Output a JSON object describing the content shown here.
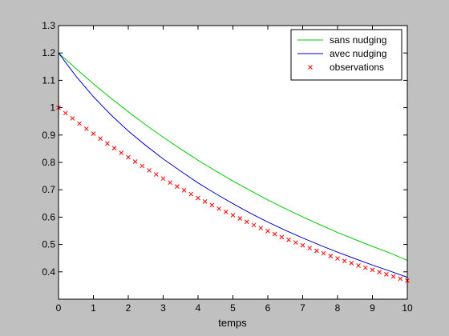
{
  "chart_data": {
    "type": "line",
    "title": "",
    "xlabel": "temps",
    "ylabel": "",
    "xlim": [
      0,
      10
    ],
    "ylim": [
      0.3,
      1.3
    ],
    "xticks": [
      "0",
      "1",
      "2",
      "3",
      "4",
      "5",
      "6",
      "7",
      "8",
      "9",
      "10"
    ],
    "yticks": [
      "0.4",
      "0.5",
      "0.6",
      "0.7",
      "0.8",
      "0.9",
      "1",
      "1.1",
      "1.2",
      "1.3"
    ],
    "grid": false,
    "legend_position": "top-right",
    "colors": {
      "figure_background": "#c0c0c0",
      "axes_background": "#ffffff",
      "sans_nudging": "#00cc00",
      "avec_nudging": "#0000cc",
      "observations": "#ff0000"
    },
    "series": [
      {
        "name": "sans nudging",
        "style": "line",
        "x": [
          0,
          0.5,
          1,
          1.5,
          2,
          2.5,
          3,
          3.5,
          4,
          4.5,
          5,
          5.5,
          6,
          6.5,
          7,
          7.5,
          8,
          8.5,
          9,
          9.5,
          10
        ],
        "y": [
          1.2,
          1.143,
          1.087,
          1.035,
          0.985,
          0.937,
          0.892,
          0.849,
          0.808,
          0.769,
          0.732,
          0.697,
          0.663,
          0.631,
          0.601,
          0.572,
          0.544,
          0.518,
          0.493,
          0.469,
          0.442
        ]
      },
      {
        "name": "avec nudging",
        "style": "line",
        "x": [
          0,
          0.5,
          1,
          1.5,
          2,
          2.5,
          3,
          3.5,
          4,
          4.5,
          5,
          5.5,
          6,
          6.5,
          7,
          7.5,
          8,
          8.5,
          9,
          9.5,
          10
        ],
        "y": [
          1.2,
          1.115,
          1.04,
          0.974,
          0.915,
          0.862,
          0.813,
          0.768,
          0.725,
          0.686,
          0.649,
          0.614,
          0.582,
          0.552,
          0.524,
          0.497,
          0.472,
          0.448,
          0.425,
          0.403,
          0.38
        ]
      },
      {
        "name": "observations",
        "style": "marker-x",
        "x": [
          0,
          0.2,
          0.4,
          0.6,
          0.8,
          1,
          1.2,
          1.4,
          1.6,
          1.8,
          2,
          2.2,
          2.4,
          2.6,
          2.8,
          3,
          3.2,
          3.4,
          3.6,
          3.8,
          4,
          4.2,
          4.4,
          4.6,
          4.8,
          5,
          5.2,
          5.4,
          5.6,
          5.8,
          6,
          6.2,
          6.4,
          6.6,
          6.8,
          7,
          7.2,
          7.4,
          7.6,
          7.8,
          8,
          8.2,
          8.4,
          8.6,
          8.8,
          9,
          9.2,
          9.4,
          9.6,
          9.8,
          10
        ],
        "y": [
          1,
          0.98,
          0.961,
          0.942,
          0.923,
          0.905,
          0.887,
          0.869,
          0.852,
          0.835,
          0.819,
          0.803,
          0.787,
          0.771,
          0.756,
          0.741,
          0.726,
          0.712,
          0.698,
          0.684,
          0.67,
          0.657,
          0.644,
          0.631,
          0.619,
          0.607,
          0.595,
          0.583,
          0.571,
          0.56,
          0.549,
          0.538,
          0.527,
          0.517,
          0.507,
          0.497,
          0.487,
          0.477,
          0.468,
          0.458,
          0.449,
          0.44,
          0.432,
          0.423,
          0.415,
          0.407,
          0.399,
          0.391,
          0.383,
          0.375,
          0.368
        ]
      }
    ]
  }
}
